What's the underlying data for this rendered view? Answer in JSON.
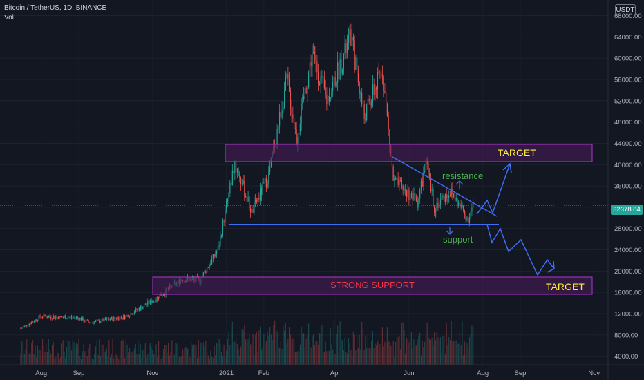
{
  "header": {
    "symbol": "Bitcoin / TetherUS, 1D, BINANCE",
    "volume_label": "Vol"
  },
  "currency_badge": "USDT",
  "last_price": "32378.84",
  "colors": {
    "up": "#26a69a",
    "down": "#ef5350",
    "trendline": "#3f6df2",
    "zone_border": "#b434d1",
    "zone_fill": "#4a1c5c",
    "target_text": "#ffeb3b",
    "support_text": "#f23645",
    "annotation_text": "#4caf50"
  },
  "annotations": {
    "target_top": "TARGET",
    "target_bottom": "TARGET",
    "strong_support": "STRONG SUPPORT",
    "resistance": "resistance",
    "support": "support"
  },
  "chart_data": {
    "type": "candlestick",
    "y_ticks": [
      "68000.00",
      "64000.00",
      "60000.00",
      "56000.00",
      "52000.00",
      "48000.00",
      "44000.00",
      "40000.00",
      "36000.00",
      "32000.00",
      "28000.00",
      "24000.00",
      "20000.00",
      "16000.00",
      "12000.00",
      "8000.00",
      "4000.00"
    ],
    "x_ticks": [
      "Aug",
      "Sep",
      "Nov",
      "2021",
      "Feb",
      "Apr",
      "Jun",
      "Aug",
      "Sep",
      "Nov"
    ],
    "price_path": [
      {
        "date": "2020-07-15",
        "price": 9200
      },
      {
        "date": "2020-08-01",
        "price": 11500
      },
      {
        "date": "2020-09-01",
        "price": 11200
      },
      {
        "date": "2020-09-10",
        "price": 10300
      },
      {
        "date": "2020-10-10",
        "price": 11500
      },
      {
        "date": "2020-11-05",
        "price": 15000
      },
      {
        "date": "2020-11-25",
        "price": 18500
      },
      {
        "date": "2020-12-10",
        "price": 18300
      },
      {
        "date": "2020-12-25",
        "price": 24000
      },
      {
        "date": "2021-01-08",
        "price": 40500
      },
      {
        "date": "2021-01-22",
        "price": 31000
      },
      {
        "date": "2021-02-05",
        "price": 38000
      },
      {
        "date": "2021-02-20",
        "price": 56000
      },
      {
        "date": "2021-02-28",
        "price": 45000
      },
      {
        "date": "2021-03-13",
        "price": 61000
      },
      {
        "date": "2021-03-25",
        "price": 52000
      },
      {
        "date": "2021-04-14",
        "price": 64000
      },
      {
        "date": "2021-04-25",
        "price": 49000
      },
      {
        "date": "2021-05-10",
        "price": 58000
      },
      {
        "date": "2021-05-19",
        "price": 37000
      },
      {
        "date": "2021-06-08",
        "price": 33000
      },
      {
        "date": "2021-06-15",
        "price": 40000
      },
      {
        "date": "2021-06-22",
        "price": 32000
      },
      {
        "date": "2021-07-05",
        "price": 35000
      },
      {
        "date": "2021-07-20",
        "price": 29800
      },
      {
        "date": "2021-07-24",
        "price": 32378
      }
    ],
    "zones": [
      {
        "name": "TARGET",
        "low": 41500,
        "high": 44800
      },
      {
        "name": "STRONG SUPPORT",
        "low": 16500,
        "high": 19800
      }
    ],
    "trendlines": [
      {
        "name": "resistance",
        "from": {
          "date": "2021-05-19",
          "price": 42000
        },
        "to": {
          "date": "2021-08-01",
          "price": 31000
        }
      },
      {
        "name": "support",
        "from": {
          "date": "2021-01-10",
          "price": 29800
        },
        "to": {
          "date": "2021-08-01",
          "price": 29800
        }
      }
    ],
    "ylim": [
      4000,
      70000
    ]
  }
}
